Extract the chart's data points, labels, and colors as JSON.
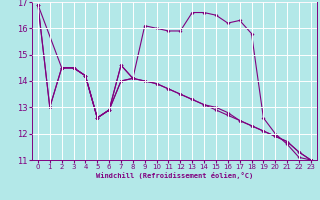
{
  "xlabel": "Windchill (Refroidissement éolien,°C)",
  "background_color": "#b3e8e8",
  "line_color": "#800080",
  "grid_color": "#ffffff",
  "xlim": [
    -0.5,
    23.5
  ],
  "ylim": [
    11,
    17
  ],
  "yticks": [
    11,
    12,
    13,
    14,
    15,
    16,
    17
  ],
  "xticks": [
    0,
    1,
    2,
    3,
    4,
    5,
    6,
    7,
    8,
    9,
    10,
    11,
    12,
    13,
    14,
    15,
    16,
    17,
    18,
    19,
    20,
    21,
    22,
    23
  ],
  "line1_x": [
    0,
    1,
    2,
    3,
    4,
    5,
    6,
    7,
    8,
    9,
    10,
    11,
    12,
    13,
    14,
    15,
    16,
    17,
    18,
    19,
    20,
    21,
    22,
    23
  ],
  "line1_y": [
    16.9,
    13.0,
    14.5,
    14.5,
    14.2,
    12.6,
    12.9,
    14.6,
    14.1,
    16.1,
    16.0,
    15.9,
    15.9,
    16.6,
    16.6,
    16.5,
    16.2,
    16.3,
    15.8,
    12.6,
    12.0,
    11.6,
    11.1,
    11.0
  ],
  "line2_x": [
    2,
    3,
    4,
    5,
    6,
    7,
    8
  ],
  "line2_y": [
    14.5,
    14.5,
    14.2,
    12.6,
    12.9,
    14.6,
    14.1
  ],
  "line3_x": [
    0,
    2,
    3,
    4,
    5,
    6,
    7,
    8,
    9,
    10,
    11,
    12,
    13,
    14,
    15,
    16,
    17,
    18,
    19,
    20,
    21,
    22,
    23
  ],
  "line3_y": [
    16.9,
    14.5,
    14.5,
    14.2,
    12.6,
    12.9,
    14.0,
    14.1,
    14.0,
    13.9,
    13.7,
    13.5,
    13.3,
    13.1,
    13.0,
    12.8,
    12.5,
    12.3,
    12.1,
    11.9,
    11.7,
    11.3,
    11.0
  ],
  "line4_x": [
    0,
    1,
    2,
    3,
    4,
    5,
    6,
    7,
    8,
    9,
    10,
    11,
    12,
    13,
    14,
    15,
    16,
    17,
    18,
    19,
    20,
    21,
    22,
    23
  ],
  "line4_y": [
    16.9,
    13.0,
    14.5,
    14.5,
    14.2,
    12.6,
    12.9,
    14.0,
    14.1,
    14.0,
    13.9,
    13.7,
    13.5,
    13.3,
    13.1,
    12.9,
    12.7,
    12.5,
    12.3,
    12.1,
    11.9,
    11.7,
    11.3,
    11.0
  ]
}
